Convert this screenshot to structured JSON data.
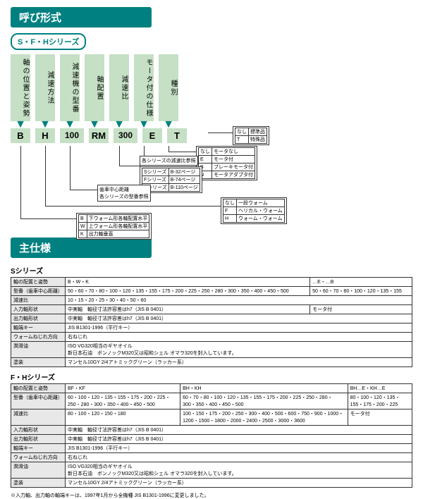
{
  "titles": {
    "main": "呼び形式",
    "spec": "主仕様"
  },
  "series_tag": "S・F・Hシリーズ",
  "columns": [
    {
      "h": "軸の位置と姿勢",
      "c": "B"
    },
    {
      "h": "減速方法",
      "c": "H"
    },
    {
      "h": "減速機の型番",
      "c": "100"
    },
    {
      "h": "軸配置",
      "c": "RM"
    },
    {
      "h": "減速比",
      "c": "300"
    },
    {
      "h": "モータ付の仕様",
      "c": "E"
    },
    {
      "h": "種別",
      "c": "T"
    }
  ],
  "legend_type": [
    [
      "なし",
      "標準品"
    ],
    [
      "T",
      "特殊品"
    ]
  ],
  "legend_motor": [
    [
      "なし",
      "モータなし"
    ],
    [
      "E",
      "モータ付"
    ],
    [
      "B",
      "ブレーキモータ付"
    ],
    [
      "N",
      "モータアダプタ付"
    ]
  ],
  "legend_ratio_hdr": "各シリーズの減速比参照",
  "legend_ratio": [
    [
      "Sシリーズ",
      "B-32ページ"
    ],
    [
      "Fシリーズ",
      "B-74ページ"
    ],
    [
      "Hシリーズ",
      "B-110ページ"
    ]
  ],
  "legend_model": "歯車中心距離\n各シリーズの型番参照",
  "legend_method": [
    [
      "なし",
      "一段ウォーム"
    ],
    [
      "F",
      "ヘリカル・ウォーム"
    ],
    [
      "H",
      "ウォーム・ウォーム"
    ]
  ],
  "legend_axis": [
    [
      "B",
      "下ウォーム形各軸配置水平"
    ],
    [
      "W",
      "上ウォーム形各軸配置水平"
    ],
    [
      "K",
      "出力軸垂直"
    ]
  ],
  "s_title": "Sシリーズ",
  "s_rows": [
    [
      "軸の配置と姿勢",
      "B・W・K",
      "",
      "…E・…B"
    ],
    [
      "型番（歯車中心距離）",
      "50・60・70・80・100・120・135・155・175・200・225・250・280・300・350・400・450・500",
      "",
      "50・60・70・80・100・120・135・155"
    ],
    [
      "減速比",
      "10・15・20・25・30・40・50・60",
      "",
      ""
    ],
    [
      "入力軸形状",
      "中実軸　軸径寸法許容差はh7（JIS B 0401）",
      "",
      "モータ付"
    ],
    [
      "出力軸形状",
      "中実軸　軸径寸法許容差はh7（JIS B 0401）",
      "",
      ""
    ],
    [
      "軸端キー",
      "JIS B1301-1996（平行キー）",
      "",
      ""
    ],
    [
      "ウォームねじれ方向",
      "右ねじれ",
      "",
      ""
    ],
    [
      "潤滑油",
      "ISO VG320相当のギヤオイル\n新日本石油　ボンノックM320又は昭和シェル オマラ320を封入しています。",
      "",
      ""
    ],
    [
      "塗装",
      "マンセル10GY 2/4アトミックグリーン（ラッカー系）",
      "",
      ""
    ]
  ],
  "fh_title": "F・Hシリーズ",
  "fh_rows": [
    [
      "軸の配置と姿勢",
      "BF・KF",
      "BH・KH",
      "BH…E・KH…E"
    ],
    [
      "型番（歯車中心距離）",
      "60・100・120・135・155・175・200・225・250・280・300・350・400・450・500",
      "60・70・80・100・120・135・155・175・200・225・250・280・300・350・400・450・500",
      "80・100・120・135・155・175・200・225"
    ],
    [
      "減速比",
      "80・100・120・150・180",
      "100・150・175・200・250・300・400・500・600・750・900・1000・1200・1500・1800・2000・2400・2500・3000・3600",
      "モータ付"
    ],
    [
      "入力軸形状",
      "中実軸　軸径寸法許容差はh7（JIS B 0401）",
      "",
      ""
    ],
    [
      "出力軸形状",
      "中実軸　軸径寸法許容差はh7（JIS B 0401）",
      "",
      ""
    ],
    [
      "軸端キー",
      "JIS B1301-1996（平行キー）",
      "",
      ""
    ],
    [
      "ウォームねじれ方向",
      "右ねじれ",
      "",
      ""
    ],
    [
      "潤滑油",
      "ISO VG320相当のギヤオイル\n新日本石油　ボンノックM320又は昭和シェル オマラ320を封入しています。",
      "",
      ""
    ],
    [
      "塗装",
      "マンセル10GY 2/4アトミックグリーン（ラッカー系）",
      "",
      ""
    ]
  ],
  "footnote": "※入力軸、出力軸の軸端キーは、1997年1月から全機種 JIS B1301-1996に変更しました。"
}
